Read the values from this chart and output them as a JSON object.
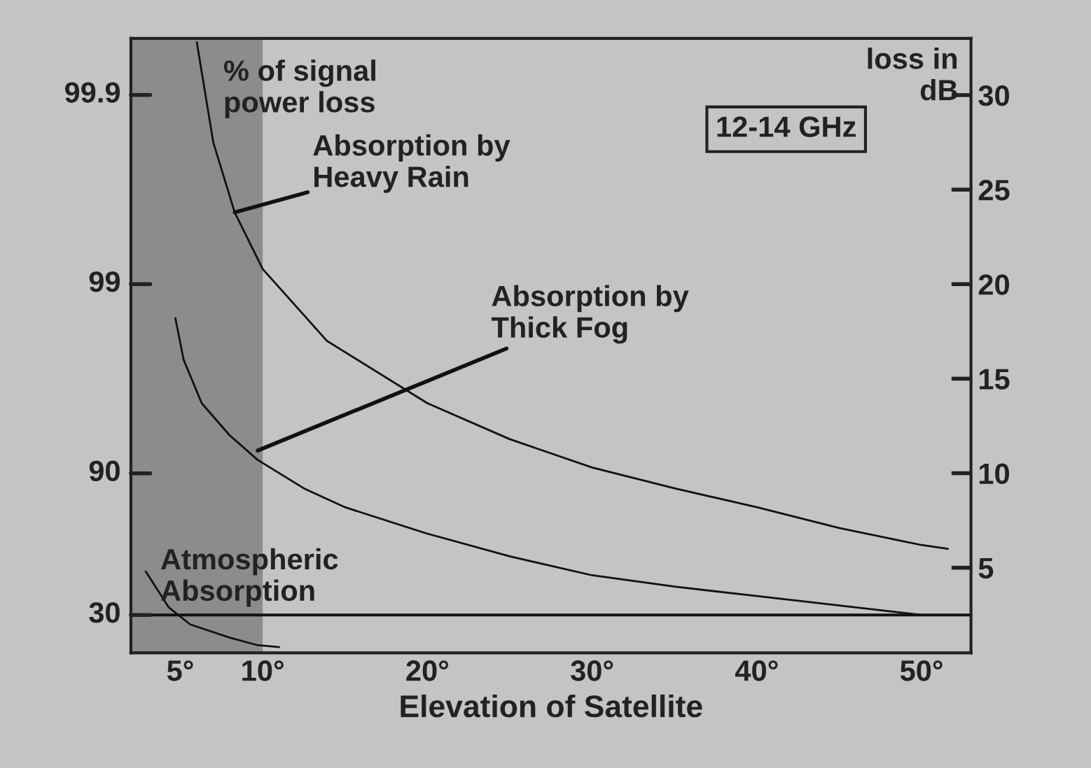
{
  "chart_data": {
    "type": "line",
    "xlabel": "Elevation of Satellite",
    "ylabel": "loss in\ndB",
    "xlim": [
      2,
      53
    ],
    "xticks": [
      {
        "value": 5,
        "label": "5°"
      },
      {
        "value": 10,
        "label": "10°"
      },
      {
        "value": 20,
        "label": "20°"
      },
      {
        "value": 30,
        "label": "30°"
      },
      {
        "value": 40,
        "label": "40°"
      },
      {
        "value": 50,
        "label": "50°"
      }
    ],
    "ylim": [
      0.5,
      33
    ],
    "yticks": [
      5,
      10,
      15,
      20,
      25,
      30
    ],
    "series": [
      {
        "color": "#111111",
        "x": [
          6,
          7,
          8.3,
          10,
          13.9,
          20,
          25,
          30,
          35,
          40,
          45,
          50,
          51.6
        ],
        "values": [
          32.8,
          27.5,
          23.8,
          20.8,
          17,
          13.7,
          11.8,
          10.3,
          9.2,
          8.2,
          7.1,
          6.2,
          6
        ]
      },
      {
        "color": "#111111",
        "x": [
          4.7,
          5.2,
          6.3,
          8,
          9.7,
          12.5,
          15,
          20,
          25,
          30,
          35,
          40,
          45,
          50
        ],
        "values": [
          18.2,
          16,
          13.7,
          12,
          10.7,
          9.2,
          8.2,
          6.8,
          5.6,
          4.6,
          4,
          3.5,
          3,
          2.5
        ]
      },
      {
        "color": "#111111",
        "x": [
          2.9,
          4.3,
          5.6,
          8,
          9.7,
          11
        ],
        "values": [
          4.8,
          2.9,
          2.0,
          1.3,
          0.9,
          0.8
        ]
      }
    ],
    "bands": [
      {
        "axis": "x",
        "from": 2,
        "to": 10,
        "color": "#8c8c8c"
      }
    ],
    "ref_lines": [
      {
        "axis": "y",
        "value": 2.5,
        "color": "#111111"
      }
    ],
    "annotations": [
      "99.9",
      "99",
      "90",
      "30",
      "% of signal\npower loss",
      {
        "text": "Absorption by\nHeavy Rain",
        "x": 8.3,
        "y": 23.8
      },
      {
        "text": "Absorption by\nThick Fog",
        "x": 9.7,
        "y": 11.2
      },
      "Atmospheric\nAbsorption",
      "12-14 GHz"
    ],
    "grid": false,
    "legend": false,
    "line_style": "solid",
    "marker": "none"
  }
}
